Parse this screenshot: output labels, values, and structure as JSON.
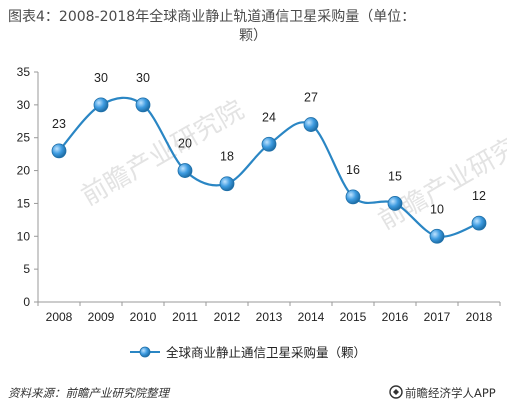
{
  "chart_title": "图表4：2008-2018年全球商业静止轨道通信卫星采购量（单位：颗）",
  "title_lines": [
    "图表4：2008-2018年全球商业静止轨道通信卫星采购量（单位：",
    "颗）"
  ],
  "source_label": "资料来源：前瞻产业研究院整理",
  "brand_label": "前瞻经济学人APP",
  "watermark_text": "前瞻产业研究院",
  "colors": {
    "line": "#2a86c4",
    "marker_fill": "#3d9be0",
    "marker_stroke": "#1f6fa8",
    "axis": "#999999",
    "text": "#222222"
  },
  "chart_data": {
    "type": "line",
    "title": "图表4：2008-2018年全球商业静止轨道通信卫星采购量（单位：颗）",
    "xlabel": "",
    "ylabel": "",
    "categories": [
      "2008",
      "2009",
      "2010",
      "2011",
      "2012",
      "2013",
      "2014",
      "2015",
      "2016",
      "2017",
      "2018"
    ],
    "series": [
      {
        "name": "全球商业静止通信卫星采购量（颗）",
        "values": [
          23,
          30,
          30,
          20,
          18,
          24,
          27,
          16,
          15,
          10,
          12
        ]
      }
    ],
    "ylim": [
      0,
      35
    ],
    "yticks": [
      "0",
      "5",
      "10",
      "15",
      "20",
      "25",
      "30",
      "35"
    ],
    "smooth": true,
    "markers": true,
    "data_labels": true,
    "grid": false,
    "legend_position": "bottom"
  }
}
